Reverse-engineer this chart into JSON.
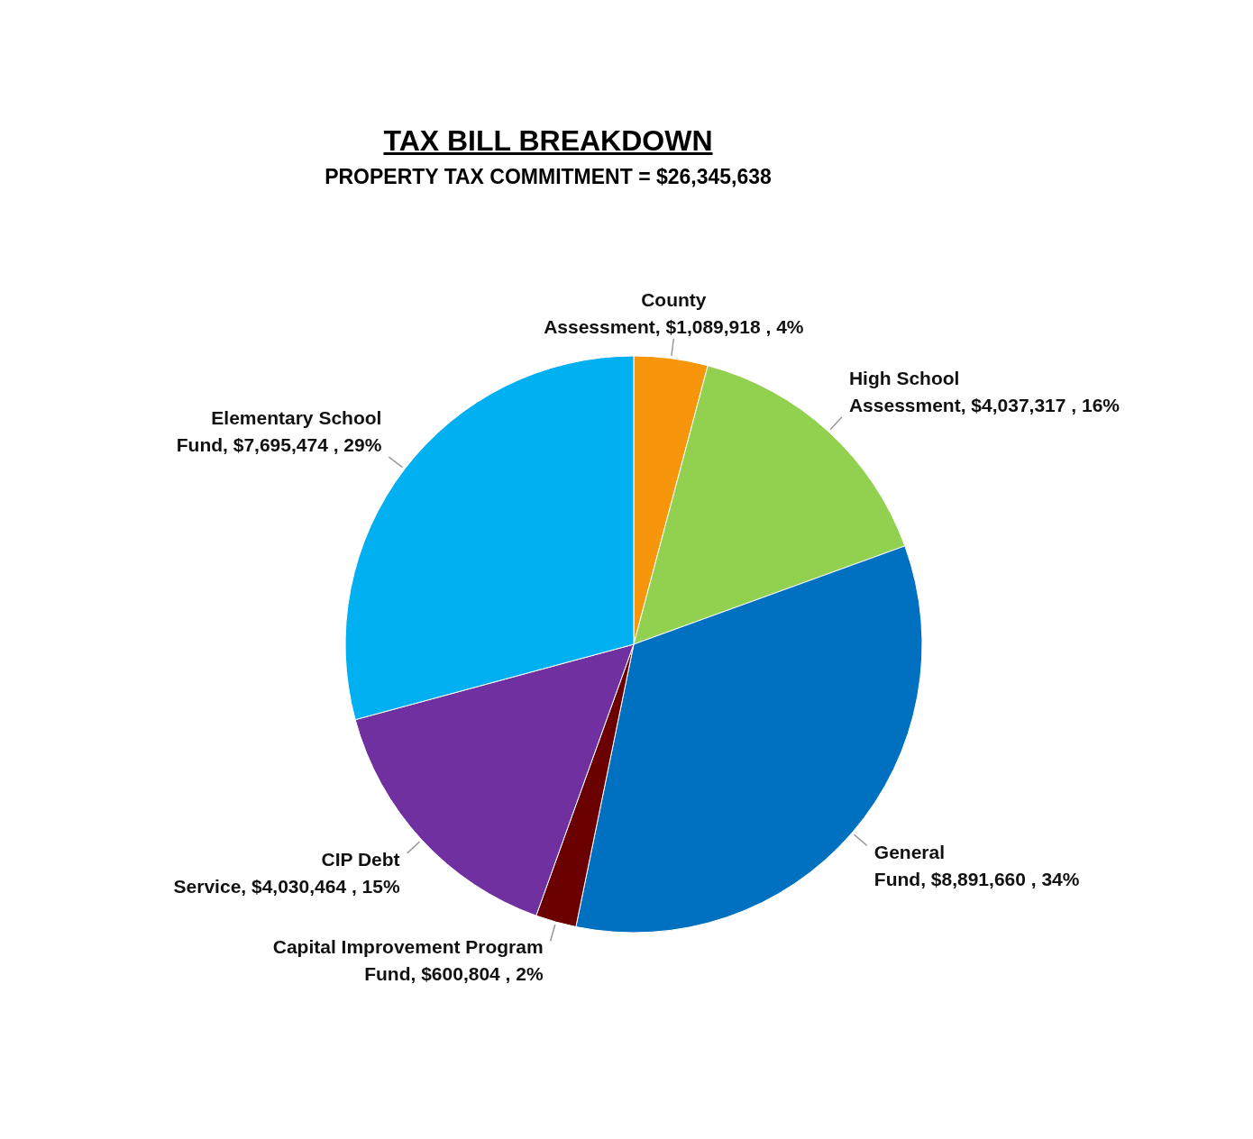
{
  "chart_data": {
    "type": "pie",
    "title": "TAX BILL BREAKDOWN",
    "subtitle": "PROPERTY TAX COMMITMENT = $26,345,638",
    "categories": [
      "County Assessment",
      "High School Assessment",
      "General Fund",
      "Capital Improvement Program Fund",
      "CIP Debt Service",
      "Elementary School Fund"
    ],
    "values": [
      1089918,
      4037317,
      8891660,
      600804,
      4030464,
      7695474
    ],
    "value_labels": [
      "$1,089,918 , 4%",
      "$4,037,317 , 16%",
      "$8,891,660 , 34%",
      "$600,804 , 2%",
      "$4,030,464 , 15%",
      "$7,695,474 , 29%"
    ],
    "colors": [
      "#f7960a",
      "#92d050",
      "#0070c0",
      "#6b0000",
      "#7030a0",
      "#00b0f0"
    ],
    "legend": false
  }
}
